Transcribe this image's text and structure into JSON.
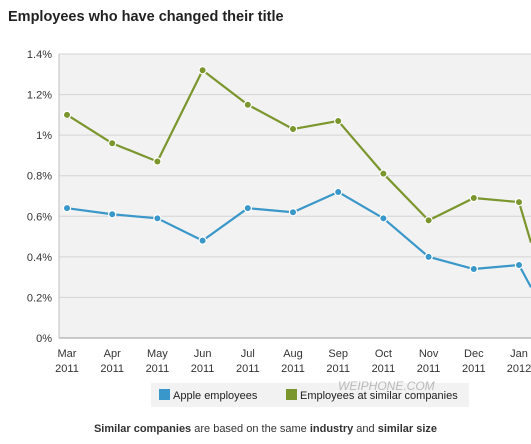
{
  "title": "Employees who have changed their title",
  "footnote": {
    "p1": "Similar companies",
    "p2": " are based on the same ",
    "p3": "industry",
    "p4": " and ",
    "p5": "similar size"
  },
  "watermark": "WEIPHONE.COM",
  "colors": {
    "apple": "#3a97c9",
    "similar": "#7a962c",
    "plot_bg": "#f2f2f2",
    "grid": "#d4d4d4"
  },
  "chart_data": {
    "type": "line",
    "title": "Employees who have changed their title",
    "categories": [
      [
        "Mar",
        "2011"
      ],
      [
        "Apr",
        "2011"
      ],
      [
        "May",
        "2011"
      ],
      [
        "Jun",
        "2011"
      ],
      [
        "Jul",
        "2011"
      ],
      [
        "Aug",
        "2011"
      ],
      [
        "Sep",
        "2011"
      ],
      [
        "Oct",
        "2011"
      ],
      [
        "Nov",
        "2011"
      ],
      [
        "Dec",
        "2011"
      ],
      [
        "Jan",
        "2012"
      ]
    ],
    "yticks": [
      "0%",
      "0.2%",
      "0.4%",
      "0.6%",
      "0.8%",
      "1%",
      "1.2%",
      "1.4%"
    ],
    "ylim": [
      0,
      1.4
    ],
    "grid": true,
    "legend_position": "bottom",
    "series": [
      {
        "name": "Apple employees",
        "color": "#3a97c9",
        "values": [
          0.64,
          0.61,
          0.59,
          0.48,
          0.64,
          0.62,
          0.72,
          0.59,
          0.4,
          0.34,
          0.36
        ],
        "tail_value": 0.25
      },
      {
        "name": "Employees at similar companies",
        "color": "#7a962c",
        "values": [
          1.1,
          0.96,
          0.87,
          1.32,
          1.15,
          1.03,
          1.07,
          0.81,
          0.58,
          0.69,
          0.67
        ],
        "tail_value": 0.47
      }
    ]
  }
}
